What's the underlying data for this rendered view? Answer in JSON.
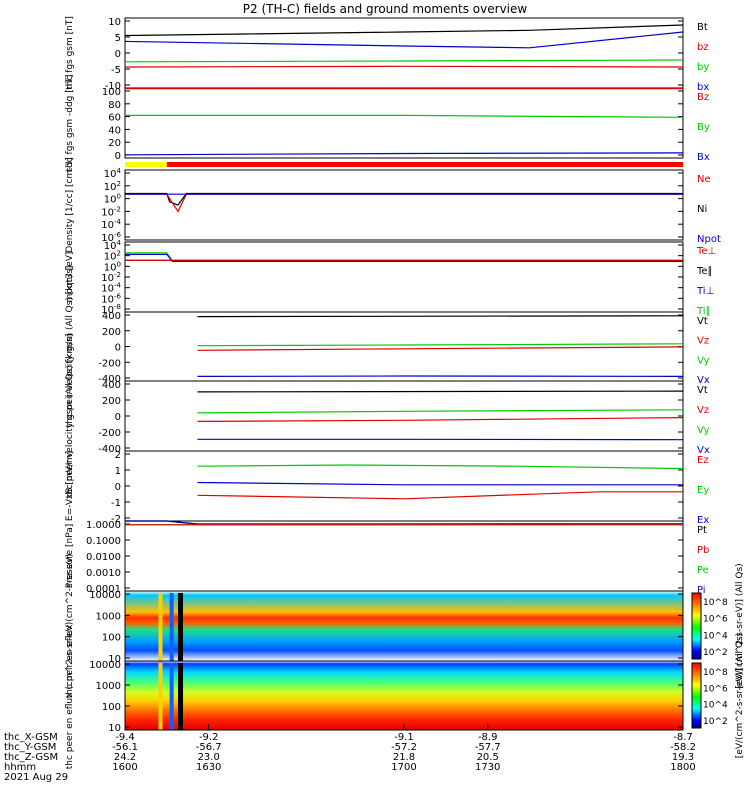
{
  "title": "P2 (TH-C) fields and ground moments overview",
  "colors": {
    "black": "#000000",
    "red": "#e00000",
    "green": "#00cc00",
    "blue": "#0000cc",
    "mode_yellow": "#ffff00",
    "mode_red": "#ff0000"
  },
  "chart_data": [
    {
      "type": "line",
      "ylabel": "thc fgs gsm [nT]",
      "ylim": [
        -10,
        10
      ],
      "yticks": [
        "10",
        "5",
        "0",
        "-5",
        "-10"
      ],
      "legend": [
        {
          "name": "Bt",
          "color": "black"
        },
        {
          "name": "bz",
          "color": "red"
        },
        {
          "name": "by",
          "color": "green"
        },
        {
          "name": "bx",
          "color": "blue"
        }
      ],
      "series": [
        {
          "name": "Bt",
          "color": "black",
          "points": [
            [
              1600,
              5
            ],
            [
              1700,
              6
            ],
            [
              1745,
              6.5
            ],
            [
              1800,
              8
            ]
          ]
        },
        {
          "name": "bz",
          "color": "red",
          "points": [
            [
              1600,
              -4
            ],
            [
              1700,
              -3.8
            ],
            [
              1800,
              -4
            ]
          ]
        },
        {
          "name": "by",
          "color": "green",
          "points": [
            [
              1600,
              -2.5
            ],
            [
              1700,
              -2.3
            ],
            [
              1800,
              -2
            ]
          ]
        },
        {
          "name": "bx",
          "color": "blue",
          "points": [
            [
              1600,
              3.3
            ],
            [
              1700,
              2
            ],
            [
              1745,
              1.5
            ],
            [
              1800,
              6
            ]
          ]
        }
      ]
    },
    {
      "type": "line",
      "ylabel": "thc fgs gsm -ddg [nT]",
      "ylim": [
        -10,
        100
      ],
      "yticks": [
        "100",
        "80",
        "60",
        "40",
        "20",
        "0"
      ],
      "legend": [
        {
          "name": "Bz",
          "color": "red"
        },
        {
          "name": "By",
          "color": "green"
        },
        {
          "name": "Bx",
          "color": "blue"
        }
      ],
      "series": [
        {
          "name": "Bz",
          "color": "red",
          "points": [
            [
              1600,
              99
            ],
            [
              1800,
              99
            ]
          ]
        },
        {
          "name": "By",
          "color": "green",
          "points": [
            [
              1600,
              57
            ],
            [
              1700,
              57
            ],
            [
              1800,
              54
            ]
          ]
        },
        {
          "name": "Bx",
          "color": "blue",
          "points": [
            [
              1600,
              -5
            ],
            [
              1700,
              -3
            ],
            [
              1800,
              -2
            ]
          ]
        }
      ]
    },
    {
      "type": "line",
      "ylabel": "Density [1/cc] [cm-3]",
      "ylim": [
        -7,
        4
      ],
      "log": true,
      "yticks": [
        "10^4",
        "10^2",
        "10^0",
        "10^-2",
        "10^-4",
        "10^-6"
      ],
      "legend": [
        {
          "name": "Ne",
          "color": "red"
        },
        {
          "name": "Ni",
          "color": "black"
        },
        {
          "name": "Npot",
          "color": "blue"
        }
      ],
      "series": [
        {
          "name": "Ni",
          "color": "black",
          "points": [
            [
              1600,
              0.3
            ],
            [
              1615,
              0.3
            ],
            [
              1616,
              -1
            ],
            [
              1619,
              -1.5
            ],
            [
              1622,
              0.3
            ],
            [
              1800,
              0.3
            ]
          ]
        },
        {
          "name": "Ne",
          "color": "red",
          "points": [
            [
              1600,
              0.2
            ],
            [
              1615,
              0.2
            ],
            [
              1619,
              -2.5
            ],
            [
              1622,
              0.2
            ],
            [
              1800,
              0.2
            ]
          ]
        },
        {
          "name": "Npot",
          "color": "blue",
          "points": [
            [
              1600,
              0.2
            ],
            [
              1800,
              0.2
            ]
          ]
        }
      ]
    },
    {
      "type": "line",
      "ylabel": "moqt3 [eV]",
      "ylim": [
        -9,
        4
      ],
      "log": true,
      "yticks": [
        "10^4",
        "10^2",
        "10^0",
        "10^-2",
        "10^-4",
        "10^-6",
        "10^-8"
      ],
      "legend": [
        {
          "name": "Te⊥",
          "color": "red"
        },
        {
          "name": "Te∥",
          "color": "black"
        },
        {
          "name": "Ti⊥",
          "color": "blue"
        },
        {
          "name": "Ti∥",
          "color": "green"
        }
      ],
      "series": [
        {
          "name": "Ti∥",
          "color": "green",
          "points": [
            [
              1600,
              2
            ],
            [
              1615,
              2
            ],
            [
              1617,
              0.5
            ],
            [
              1800,
              0.5
            ]
          ]
        },
        {
          "name": "Ti⊥",
          "color": "blue",
          "points": [
            [
              1600,
              1.7
            ],
            [
              1615,
              1.7
            ],
            [
              1617,
              0.4
            ],
            [
              1800,
              0.4
            ]
          ]
        },
        {
          "name": "Te∥",
          "color": "black",
          "points": [
            [
              1600,
              0.6
            ],
            [
              1800,
              0.6
            ]
          ]
        },
        {
          "name": "Te⊥",
          "color": "red",
          "points": [
            [
              1600,
              0.6
            ],
            [
              1800,
              0.6
            ]
          ]
        }
      ]
    },
    {
      "type": "line",
      "ylabel": "thc peir velocity gsm (All Qs) [km/s]",
      "ylim": [
        -450,
        450
      ],
      "yticks": [
        "400",
        "200",
        "0",
        "-200",
        "-400"
      ],
      "legend": [
        {
          "name": "Vt",
          "color": "black"
        },
        {
          "name": "Vz",
          "color": "red"
        },
        {
          "name": "Vy",
          "color": "green"
        },
        {
          "name": "Vx",
          "color": "blue"
        }
      ],
      "series": [
        {
          "name": "Vt",
          "color": "black",
          "points": [
            [
              1626,
              390
            ],
            [
              1800,
              400
            ]
          ]
        },
        {
          "name": "Vy",
          "color": "green",
          "points": [
            [
              1626,
              10
            ],
            [
              1700,
              20
            ],
            [
              1800,
              35
            ]
          ]
        },
        {
          "name": "Vz",
          "color": "red",
          "points": [
            [
              1626,
              -50
            ],
            [
              1700,
              -30
            ],
            [
              1800,
              -5
            ]
          ]
        },
        {
          "name": "Vx",
          "color": "blue",
          "points": [
            [
              1626,
              -390
            ],
            [
              1700,
              -385
            ],
            [
              1800,
              -390
            ]
          ]
        }
      ]
    },
    {
      "type": "line",
      "ylabel": "thc peer velocity gsm (All Qs) [km/s]",
      "ylim": [
        -450,
        450
      ],
      "yticks": [
        "400",
        "200",
        "0",
        "-200",
        "-400"
      ],
      "legend": [
        {
          "name": "Vt",
          "color": "black"
        },
        {
          "name": "Vz",
          "color": "red"
        },
        {
          "name": "Vy",
          "color": "green"
        },
        {
          "name": "Vx",
          "color": "blue"
        }
      ],
      "series": [
        {
          "name": "Vt",
          "color": "black",
          "points": [
            [
              1626,
              310
            ],
            [
              1800,
              320
            ]
          ]
        },
        {
          "name": "Vy",
          "color": "green",
          "points": [
            [
              1626,
              40
            ],
            [
              1700,
              60
            ],
            [
              1800,
              80
            ]
          ]
        },
        {
          "name": "Vz",
          "color": "red",
          "points": [
            [
              1626,
              -70
            ],
            [
              1700,
              -55
            ],
            [
              1800,
              -20
            ]
          ]
        },
        {
          "name": "Vx",
          "color": "blue",
          "points": [
            [
              1626,
              -300
            ],
            [
              1700,
              -300
            ],
            [
              1800,
              -305
            ]
          ]
        }
      ]
    },
    {
      "type": "line",
      "ylabel": "E=-VxB [mV/m]",
      "ylim": [
        -3,
        3
      ],
      "yticks": [
        "2",
        "1",
        "0",
        "-1",
        "-2"
      ],
      "legend": [
        {
          "name": "Ez",
          "color": "red"
        },
        {
          "name": "Ey",
          "color": "green"
        },
        {
          "name": "Ex",
          "color": "blue"
        }
      ],
      "series": [
        {
          "name": "Ey",
          "color": "green",
          "points": [
            [
              1626,
              1.7
            ],
            [
              1680,
              1.8
            ],
            [
              1740,
              1.7
            ],
            [
              1800,
              1.5
            ]
          ]
        },
        {
          "name": "Ex",
          "color": "blue",
          "points": [
            [
              1626,
              0.3
            ],
            [
              1700,
              0.1
            ],
            [
              1800,
              0.1
            ]
          ]
        },
        {
          "name": "Ez",
          "color": "red",
          "points": [
            [
              1626,
              -0.8
            ],
            [
              1700,
              -1.1
            ],
            [
              1770,
              -0.5
            ],
            [
              1800,
              -0.5
            ]
          ]
        }
      ]
    },
    {
      "type": "line",
      "ylabel": "Pressure [nPa]",
      "ylim": [
        -3.3,
        0.2
      ],
      "log": true,
      "yticks": [
        "1.0000",
        "0.1000",
        "0.0100",
        "0.0010",
        "0.0001"
      ],
      "legend": [
        {
          "name": "Pt",
          "color": "black"
        },
        {
          "name": "Pb",
          "color": "red"
        },
        {
          "name": "Pe",
          "color": "green"
        },
        {
          "name": "Pi",
          "color": "blue"
        }
      ],
      "series": [
        {
          "name": "Pt",
          "color": "black",
          "points": [
            [
              1600,
              0.6
            ],
            [
              1615,
              0.6
            ],
            [
              1626,
              0.05
            ],
            [
              1800,
              0.06
            ]
          ]
        },
        {
          "name": "Pi",
          "color": "blue",
          "points": [
            [
              1600,
              0.55
            ],
            [
              1615,
              0.55
            ],
            [
              1626,
              0.04
            ],
            [
              1800,
              0.04
            ]
          ]
        },
        {
          "name": "Pe",
          "color": "green",
          "points": [
            [
              1600,
              0.015
            ],
            [
              1615,
              0.015
            ],
            [
              1626,
              0.012
            ],
            [
              1800,
              0.015
            ]
          ]
        },
        {
          "name": "Pb",
          "color": "red",
          "points": [
            [
              1600,
              0.01
            ],
            [
              1800,
              0.012
            ]
          ]
        }
      ]
    },
    {
      "type": "heatmap",
      "ylabel": "thc peir en eflux (cm^2-s-sr-eV)",
      "ylim": [
        1,
        4
      ],
      "log": true,
      "yticks": [
        "10000",
        "1000",
        "100",
        "10"
      ],
      "colorbar": {
        "label": "[eV/(cm^2-s-sr-eV)] (All Qs)",
        "ticks": [
          "10^8",
          "10^6",
          "10^4",
          "10^2"
        ]
      }
    },
    {
      "type": "heatmap",
      "ylabel": "thc peer en eflux (cm^2-s-sr-eV)",
      "ylim": [
        1,
        4
      ],
      "log": true,
      "yticks": [
        "10000",
        "1000",
        "100",
        "10"
      ],
      "colorbar": {
        "label": "[eV/(cm^2-s-sr-eV)] (All Qs)",
        "ticks": [
          "10^8",
          "10^6",
          "10^4",
          "10^2"
        ]
      }
    }
  ],
  "xaxis": {
    "range": [
      1600,
      1800
    ],
    "row_labels": [
      "thc_X-GSM",
      "thc_Y-GSM",
      "thc_Z-GSM",
      "hhmm"
    ],
    "date": "2021 Aug 29",
    "ticks": [
      {
        "x": 1600,
        "vals": [
          "-9.4",
          "-56.1",
          "24.2",
          "1600"
        ]
      },
      {
        "x": 1630,
        "vals": [
          "-9.2",
          "-56.7",
          "23.0",
          "1630"
        ]
      },
      {
        "x": 1700,
        "vals": [
          "-9.1",
          "-57.2",
          "21.8",
          "1700"
        ]
      },
      {
        "x": 1730,
        "vals": [
          "-8.9",
          "-57.7",
          "20.5",
          "1730"
        ]
      },
      {
        "x": 1800,
        "vals": [
          "-8.7",
          "-58.2",
          "19.3",
          "1800"
        ]
      }
    ]
  }
}
